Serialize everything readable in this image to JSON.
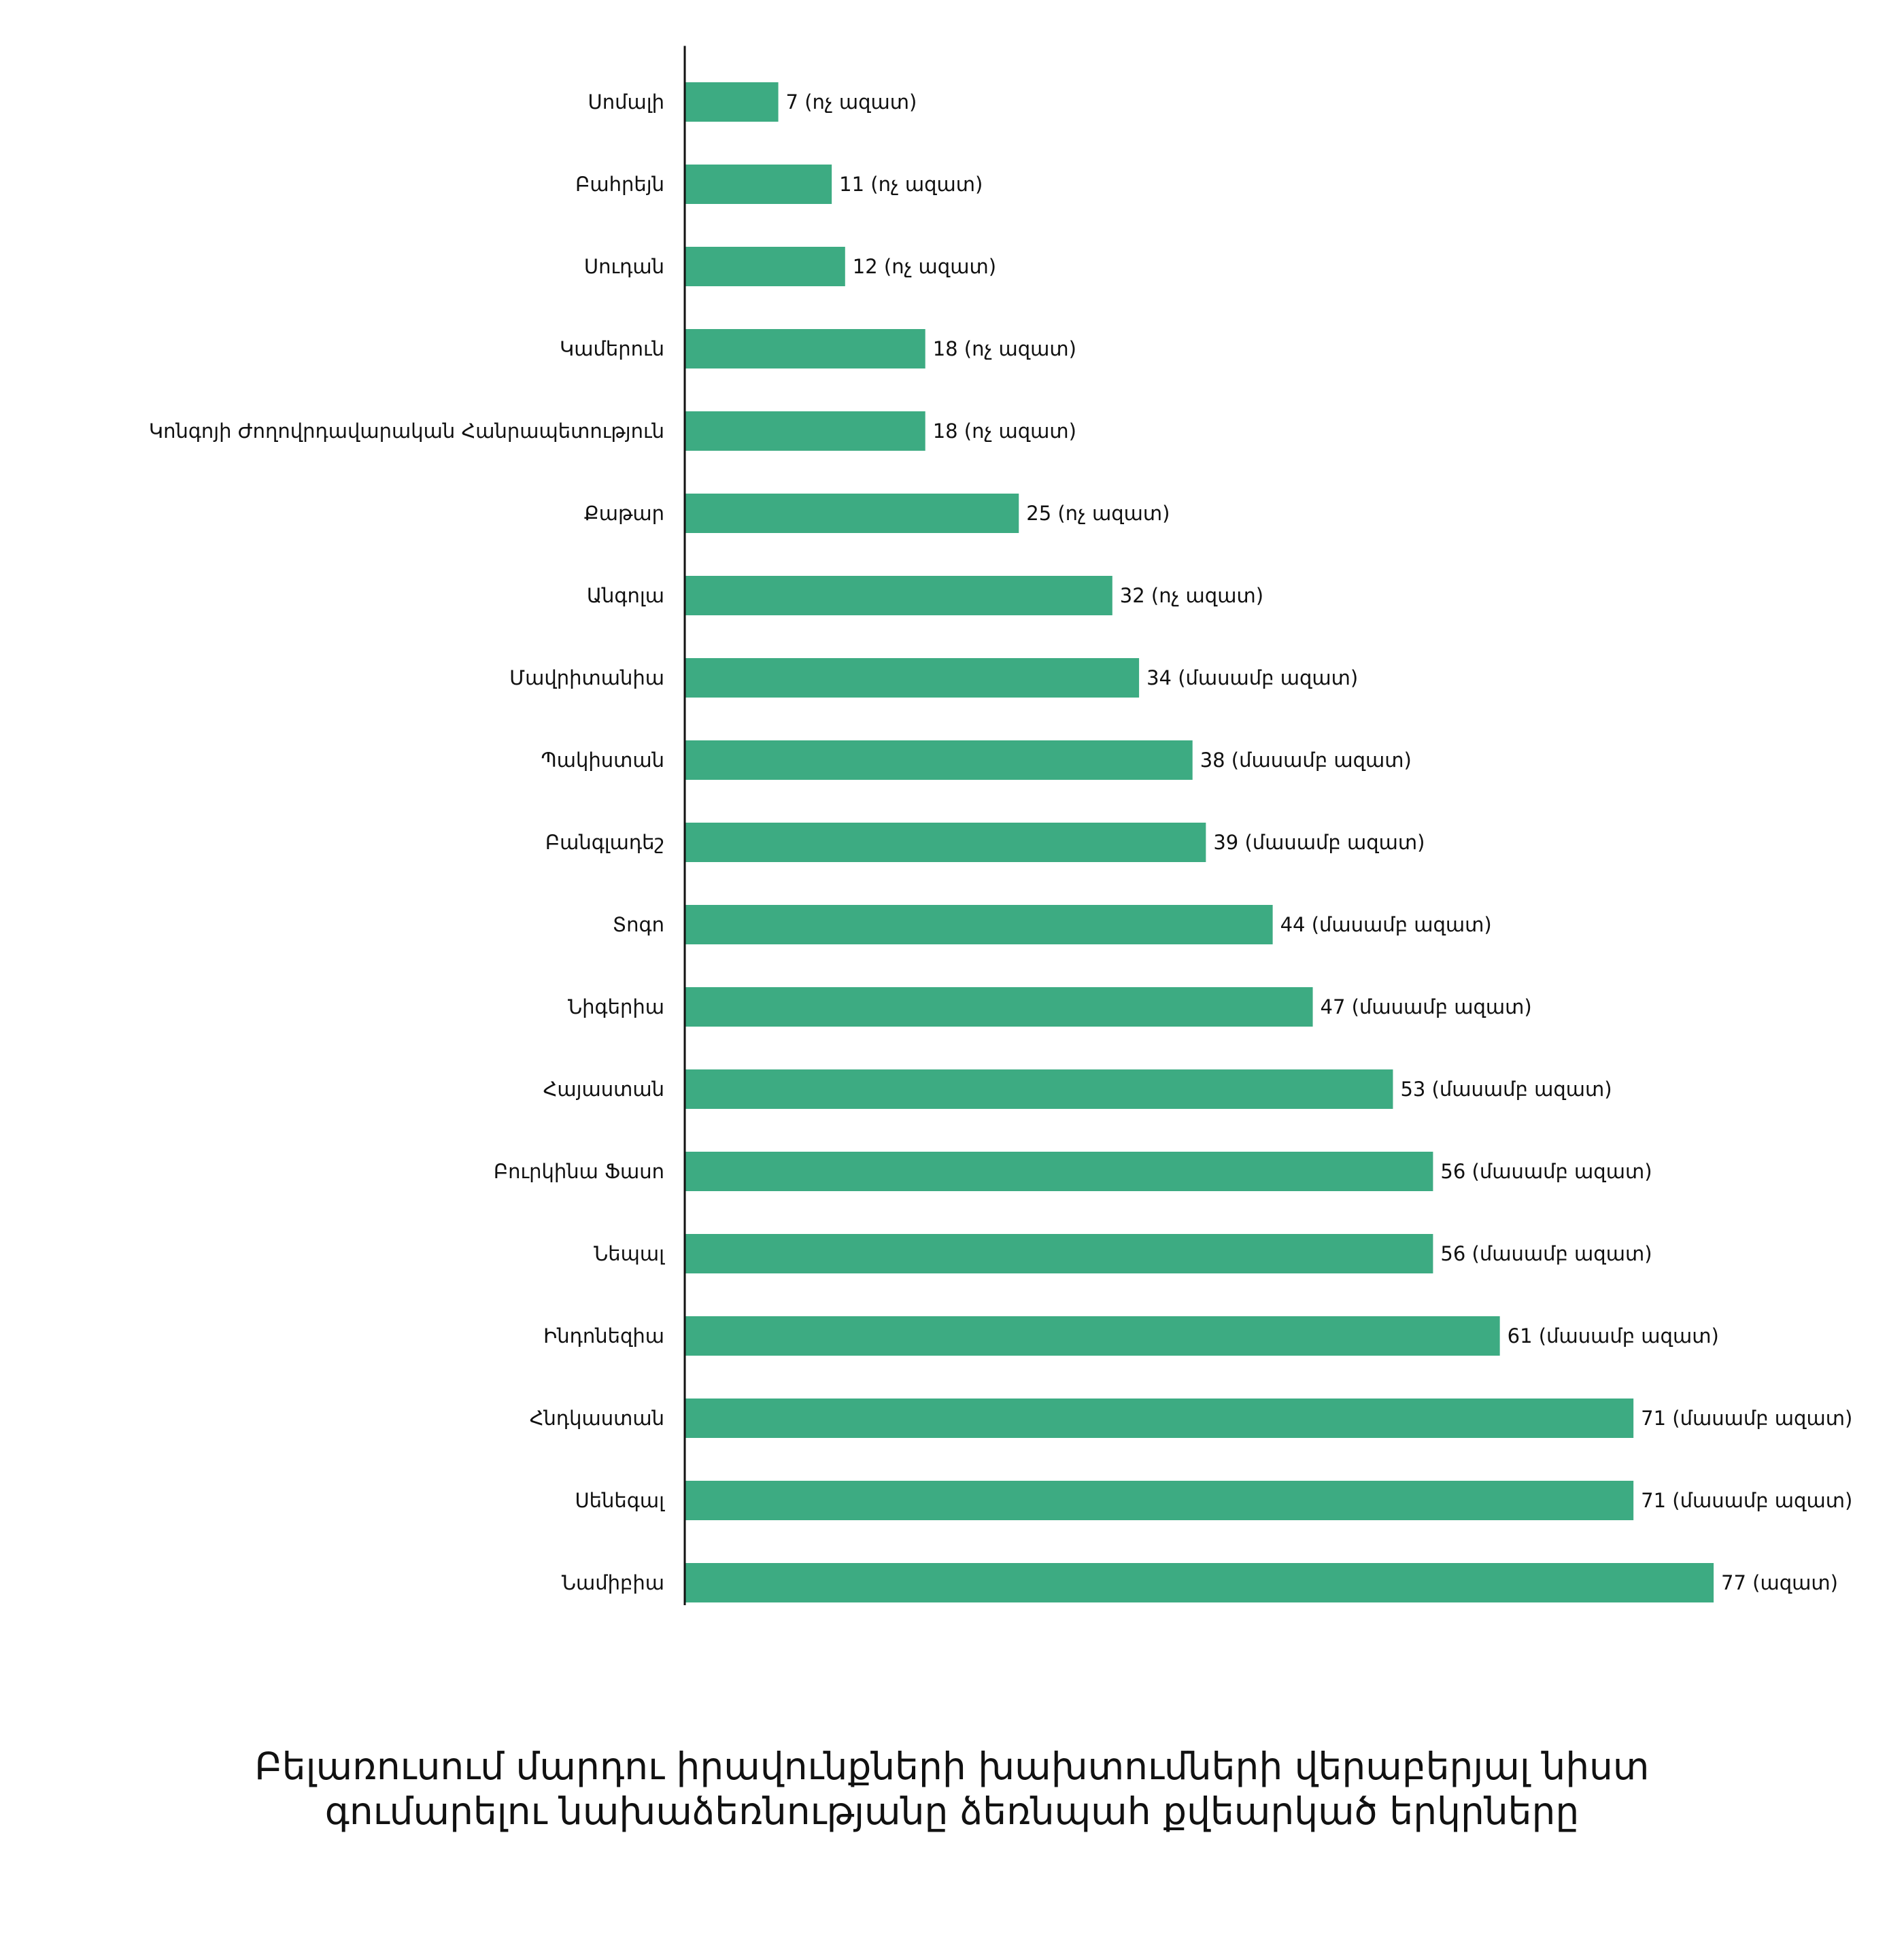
{
  "chart_data": {
    "type": "bar",
    "orientation": "horizontal",
    "title_lines": [
      "Բելառուսում մարդու իրավունքների խախտումների վերաբերյալ նիստ",
      "գումարելու նախաձեռնությանը ձեռնպահ քվեարկած երկրները"
    ],
    "xlabel": "",
    "ylabel": "",
    "xlim": [
      0,
      80
    ],
    "grid": false,
    "legend": "none",
    "bar_color": "#3dab82",
    "categories": [
      "Սոմալի",
      "Բահրեյն",
      "Սուդան",
      "Կամերուն",
      "Կոնգոյի Ժողովրդավարական Հանրապետություն",
      "Քաթար",
      "Անգոլա",
      "Մավրիտանիա",
      "Պակիստան",
      "Բանգլադեշ",
      "Տոգո",
      "Նիգերիա",
      "Հայաստան",
      "Բուրկինա Ֆասո",
      "Նեպալ",
      "Ինդոնեզիա",
      "Հնդկաստան",
      "Սենեգալ",
      "Նամիբիա"
    ],
    "values": [
      7,
      11,
      12,
      18,
      18,
      25,
      32,
      34,
      38,
      39,
      44,
      47,
      53,
      56,
      56,
      61,
      71,
      71,
      77
    ],
    "value_labels": [
      "7 (ոչ ազատ)",
      "11 (ոչ ազատ)",
      "12 (ոչ ազատ)",
      "18 (ոչ ազատ)",
      "18 (ոչ ազատ)",
      "25 (ոչ ազատ)",
      "32 (ոչ ազատ)",
      "34 (մասամբ ազատ)",
      "38 (մասամբ ազատ)",
      "39 (մասամբ ազատ)",
      "44 (մասամբ ազատ)",
      "47 (մասամբ ազատ)",
      "53 (մասամբ ազատ)",
      "56 (մասամբ ազատ)",
      "56 (մասամբ ազատ)",
      "61 (մասամբ ազատ)",
      "71 (մասամբ ազատ)",
      "71 (մասամբ ազատ)",
      "77 (ազատ)"
    ]
  }
}
